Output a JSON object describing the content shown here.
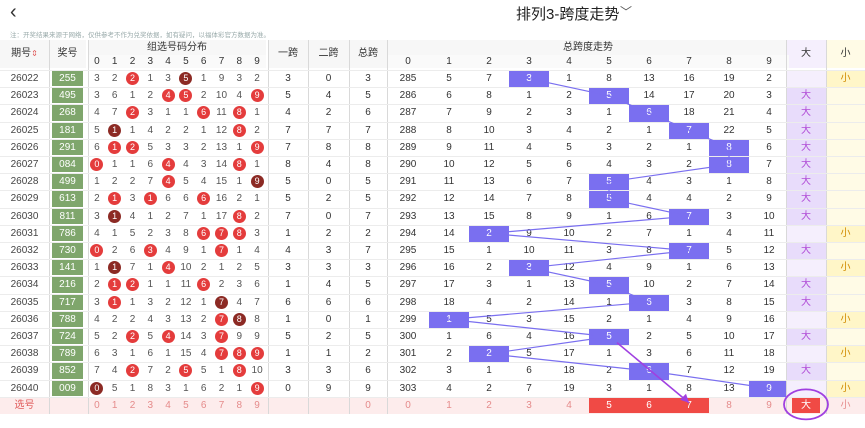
{
  "header": {
    "back_icon": "‹",
    "title": "排列3-跨度走势",
    "title_arrow": "﹀"
  },
  "notice": "注：开奖结果来源于网络，仅供参考不作为兑奖依据，如有疑问，以福体彩官方数据为准。",
  "columns": {
    "qihao": "期号",
    "sort_icon": "⇕",
    "jianghao": "奖号",
    "dist": "组选号码分布",
    "kua1": "一跨",
    "kua2": "二跨",
    "zongkua": "总跨",
    "trend": "总跨度走势",
    "big": "大",
    "small": "小",
    "digits": [
      "0",
      "1",
      "2",
      "3",
      "4",
      "5",
      "6",
      "7",
      "8",
      "9"
    ]
  },
  "rows": [
    {
      "qh": "26022",
      "jh": "255",
      "d": [
        "3",
        "2",
        "2",
        "1",
        "3",
        "5",
        "1",
        "9",
        "3",
        "2"
      ],
      "b": {
        "2": "r",
        "5": "k"
      },
      "k1": "3",
      "k2": "0",
      "zk": "3",
      "t": [
        "285",
        "5",
        "7",
        "3",
        "1",
        "8",
        "13",
        "16",
        "19",
        "2"
      ],
      "bs": "小"
    },
    {
      "qh": "26023",
      "jh": "495",
      "d": [
        "3",
        "6",
        "1",
        "2",
        "4",
        "5",
        "2",
        "10",
        "4",
        "9"
      ],
      "b": {
        "4": "r",
        "5": "r",
        "9": "r"
      },
      "k1": "5",
      "k2": "4",
      "zk": "5",
      "t": [
        "286",
        "6",
        "8",
        "1",
        "2",
        "5",
        "14",
        "17",
        "20",
        "3"
      ],
      "bs": "大"
    },
    {
      "qh": "26024",
      "jh": "268",
      "d": [
        "4",
        "7",
        "2",
        "3",
        "1",
        "1",
        "6",
        "11",
        "8",
        "1"
      ],
      "b": {
        "2": "r",
        "6": "r",
        "8": "r"
      },
      "k1": "4",
      "k2": "2",
      "zk": "6",
      "t": [
        "287",
        "7",
        "9",
        "2",
        "3",
        "1",
        "6",
        "18",
        "21",
        "4"
      ],
      "bs": "大"
    },
    {
      "qh": "26025",
      "jh": "181",
      "d": [
        "5",
        "1",
        "1",
        "4",
        "2",
        "2",
        "1",
        "12",
        "8",
        "2"
      ],
      "b": {
        "1": "k",
        "8": "r"
      },
      "k1": "7",
      "k2": "7",
      "zk": "7",
      "t": [
        "288",
        "8",
        "10",
        "3",
        "4",
        "2",
        "1",
        "7",
        "22",
        "5"
      ],
      "bs": "大"
    },
    {
      "qh": "26026",
      "jh": "291",
      "d": [
        "6",
        "1",
        "2",
        "5",
        "3",
        "3",
        "2",
        "13",
        "1",
        "9"
      ],
      "b": {
        "1": "r",
        "2": "r",
        "9": "r"
      },
      "k1": "7",
      "k2": "8",
      "zk": "8",
      "t": [
        "289",
        "9",
        "11",
        "4",
        "5",
        "3",
        "2",
        "1",
        "8",
        "6"
      ],
      "bs": "大"
    },
    {
      "qh": "26027",
      "jh": "084",
      "d": [
        "0",
        "1",
        "1",
        "6",
        "4",
        "4",
        "3",
        "14",
        "8",
        "1"
      ],
      "b": {
        "0": "r",
        "4": "r",
        "8": "r"
      },
      "k1": "8",
      "k2": "4",
      "zk": "8",
      "t": [
        "290",
        "10",
        "12",
        "5",
        "6",
        "4",
        "3",
        "2",
        "8",
        "7"
      ],
      "bs": "大"
    },
    {
      "qh": "26028",
      "jh": "499",
      "d": [
        "1",
        "2",
        "2",
        "7",
        "4",
        "5",
        "4",
        "15",
        "1",
        "9"
      ],
      "b": {
        "4": "r",
        "9": "k"
      },
      "k1": "5",
      "k2": "0",
      "zk": "5",
      "t": [
        "291",
        "11",
        "13",
        "6",
        "7",
        "5",
        "4",
        "3",
        "1",
        "8"
      ],
      "bs": "大"
    },
    {
      "qh": "26029",
      "jh": "613",
      "d": [
        "2",
        "1",
        "3",
        "1",
        "6",
        "6",
        "6",
        "16",
        "2",
        "1"
      ],
      "b": {
        "1": "r",
        "3": "r",
        "6": "r"
      },
      "k1": "5",
      "k2": "2",
      "zk": "5",
      "t": [
        "292",
        "12",
        "14",
        "7",
        "8",
        "5",
        "4",
        "4",
        "2",
        "9"
      ],
      "bs": "大"
    },
    {
      "qh": "26030",
      "jh": "811",
      "d": [
        "3",
        "1",
        "4",
        "1",
        "2",
        "7",
        "1",
        "17",
        "8",
        "2"
      ],
      "b": {
        "1": "k",
        "8": "r"
      },
      "k1": "7",
      "k2": "0",
      "zk": "7",
      "t": [
        "293",
        "13",
        "15",
        "8",
        "9",
        "1",
        "6",
        "7",
        "3",
        "10"
      ],
      "bs": "大"
    },
    {
      "qh": "26031",
      "jh": "786",
      "d": [
        "4",
        "1",
        "5",
        "2",
        "3",
        "8",
        "6",
        "7",
        "8",
        "3"
      ],
      "b": {
        "6": "r",
        "7": "r",
        "8": "r"
      },
      "k1": "1",
      "k2": "2",
      "zk": "2",
      "t": [
        "294",
        "14",
        "2",
        "9",
        "10",
        "2",
        "7",
        "1",
        "4",
        "11"
      ],
      "bs": "小"
    },
    {
      "qh": "26032",
      "jh": "730",
      "d": [
        "0",
        "2",
        "6",
        "3",
        "4",
        "9",
        "1",
        "7",
        "1",
        "4"
      ],
      "b": {
        "0": "r",
        "3": "r",
        "7": "r"
      },
      "k1": "4",
      "k2": "3",
      "zk": "7",
      "t": [
        "295",
        "15",
        "1",
        "10",
        "11",
        "3",
        "8",
        "7",
        "5",
        "12"
      ],
      "bs": "大"
    },
    {
      "qh": "26033",
      "jh": "141",
      "d": [
        "1",
        "1",
        "7",
        "1",
        "4",
        "10",
        "2",
        "1",
        "2",
        "5"
      ],
      "b": {
        "1": "k",
        "4": "r"
      },
      "k1": "3",
      "k2": "3",
      "zk": "3",
      "t": [
        "296",
        "16",
        "2",
        "3",
        "12",
        "4",
        "9",
        "1",
        "6",
        "13"
      ],
      "bs": "小"
    },
    {
      "qh": "26034",
      "jh": "216",
      "d": [
        "2",
        "1",
        "2",
        "1",
        "1",
        "11",
        "6",
        "2",
        "3",
        "6"
      ],
      "b": {
        "1": "r",
        "2": "r",
        "6": "r"
      },
      "k1": "1",
      "k2": "4",
      "zk": "5",
      "t": [
        "297",
        "17",
        "3",
        "1",
        "13",
        "5",
        "10",
        "2",
        "7",
        "14"
      ],
      "bs": "大"
    },
    {
      "qh": "26035",
      "jh": "717",
      "d": [
        "3",
        "1",
        "1",
        "3",
        "2",
        "12",
        "1",
        "7",
        "4",
        "7"
      ],
      "b": {
        "1": "r",
        "7": "k"
      },
      "k1": "6",
      "k2": "6",
      "zk": "6",
      "t": [
        "298",
        "18",
        "4",
        "2",
        "14",
        "1",
        "6",
        "3",
        "8",
        "15"
      ],
      "bs": "大"
    },
    {
      "qh": "26036",
      "jh": "788",
      "d": [
        "4",
        "2",
        "2",
        "4",
        "3",
        "13",
        "2",
        "7",
        "8",
        "8"
      ],
      "b": {
        "7": "r",
        "8": "k"
      },
      "k1": "1",
      "k2": "0",
      "zk": "1",
      "t": [
        "299",
        "1",
        "5",
        "3",
        "15",
        "2",
        "1",
        "4",
        "9",
        "16"
      ],
      "bs": "小"
    },
    {
      "qh": "26037",
      "jh": "724",
      "d": [
        "5",
        "2",
        "2",
        "5",
        "4",
        "14",
        "3",
        "7",
        "9",
        "9"
      ],
      "b": {
        "2": "r",
        "4": "r",
        "7": "r"
      },
      "k1": "5",
      "k2": "2",
      "zk": "5",
      "t": [
        "300",
        "1",
        "6",
        "4",
        "16",
        "5",
        "2",
        "5",
        "10",
        "17"
      ],
      "bs": "大"
    },
    {
      "qh": "26038",
      "jh": "789",
      "d": [
        "6",
        "3",
        "1",
        "6",
        "1",
        "15",
        "4",
        "7",
        "8",
        "9"
      ],
      "b": {
        "7": "r",
        "8": "r",
        "9": "r"
      },
      "k1": "1",
      "k2": "1",
      "zk": "2",
      "t": [
        "301",
        "2",
        "2",
        "5",
        "17",
        "1",
        "3",
        "6",
        "11",
        "18"
      ],
      "bs": "小"
    },
    {
      "qh": "26039",
      "jh": "852",
      "d": [
        "7",
        "4",
        "2",
        "7",
        "2",
        "5",
        "5",
        "1",
        "8",
        "10"
      ],
      "b": {
        "2": "r",
        "5": "r",
        "8": "r"
      },
      "k1": "3",
      "k2": "3",
      "zk": "6",
      "t": [
        "302",
        "3",
        "1",
        "6",
        "18",
        "2",
        "6",
        "7",
        "12",
        "19"
      ],
      "bs": "大"
    },
    {
      "qh": "26040",
      "jh": "009",
      "d": [
        "0",
        "5",
        "1",
        "8",
        "3",
        "1",
        "6",
        "2",
        "1",
        "9"
      ],
      "b": {
        "0": "k",
        "9": "r"
      },
      "k1": "0",
      "k2": "9",
      "zk": "9",
      "t": [
        "303",
        "4",
        "2",
        "7",
        "19",
        "3",
        "1",
        "8",
        "13",
        "9"
      ],
      "bs": "小"
    }
  ],
  "select_row": {
    "label": "选号",
    "digits": [
      "0",
      "1",
      "2",
      "3",
      "4",
      "5",
      "6",
      "7",
      "8",
      "9"
    ],
    "kua": "0",
    "trend": [
      "0",
      "1",
      "2",
      "3",
      "4",
      "5",
      "6",
      "7",
      "8",
      "9"
    ],
    "big": "大",
    "small": "小"
  },
  "colors": {
    "marker": "#7a6ff0",
    "ball_red": "#e43c3c",
    "ball_dark": "#8c2a24",
    "select": "#f04a45",
    "annotation": "#a040e0"
  }
}
